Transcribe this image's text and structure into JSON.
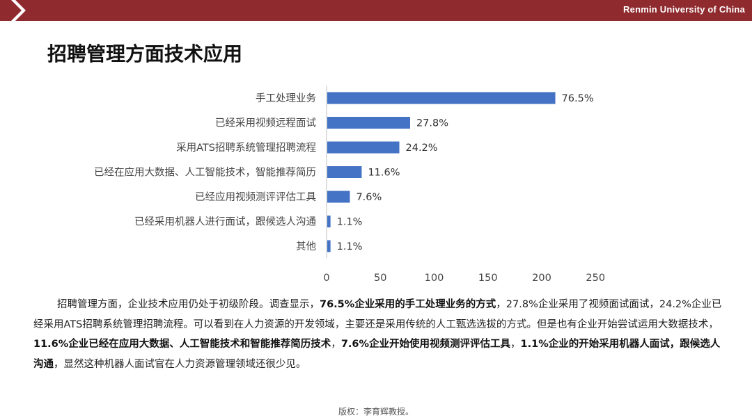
{
  "header": {
    "university": "Renmin University of China"
  },
  "page": {
    "title": "招聘管理方面技术应用"
  },
  "colors": {
    "header_bg": "#8f2a2e",
    "bar": "#4472c4"
  },
  "chart_data": {
    "type": "bar",
    "orientation": "horizontal",
    "categories": [
      "手工处理业务",
      "已经采用视频远程面试",
      "采用ATS招聘系统管理招聘流程",
      "已经在应用大数据、人工智能技术，智能推荐简历",
      "已经应用视频测评评估工具",
      "已经采用机器人进行面试，跟候选人沟通",
      "其他"
    ],
    "values": [
      212,
      77,
      67,
      32,
      21,
      3,
      3
    ],
    "data_labels": [
      "76.5%",
      "27.8%",
      "24.2%",
      "11.6%",
      "7.6%",
      "1.1%",
      "1.1%"
    ],
    "xlim": [
      0,
      250
    ],
    "x_ticks": [
      "0",
      "50",
      "100",
      "150",
      "200",
      "250"
    ],
    "grid": false,
    "legend": "none"
  },
  "body": {
    "p1": "招聘管理方面，企业技术应用仍处于初级阶段。调查显示，",
    "b1": "76.5%企业采用的手工处理业务的方式",
    "p2": "，27.8%企业采用了视频面试面试，24.2%企业已经采用ATS招聘系统管理招聘流程。可以看到在人力资源的开发领域，主要还是采用传统的人工甄选选拔的方式。但是也有企业开始尝试运用大数据技术，",
    "b2": "11.6%企业已经在应用大数据、人工智能技术和智能推荐简历技术",
    "p3": "，",
    "b3": "7.6%企业开始使用视频测评评估工具",
    "p4": "，",
    "b4": "1.1%企业的开始采用机器人面试，跟候选人沟通",
    "p5": "，显然这种机器人面试官在人力资源管理领域还很少见。"
  },
  "footer": {
    "copyright": "版权：李育辉教授。"
  }
}
